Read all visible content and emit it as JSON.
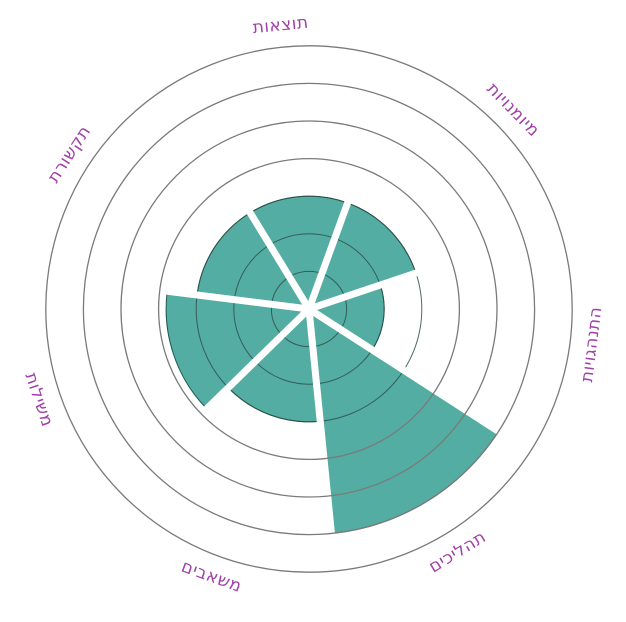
{
  "chart_data": {
    "type": "radial-bar",
    "title": "",
    "categories": [
      "מיומנויות",
      "התנהגויות",
      "תהליכים",
      "משאבים",
      "משילות",
      "תקשורת",
      "תוצאות"
    ],
    "values": [
      3,
      2,
      6,
      3,
      3.8,
      3,
      3
    ],
    "rlim": [
      0,
      7
    ],
    "ring_levels": [
      1,
      2,
      3,
      4,
      5,
      6,
      7
    ],
    "colors": {
      "fill": "#53ada2",
      "label": "#a040a8",
      "ring": "#7a7a7a"
    }
  }
}
